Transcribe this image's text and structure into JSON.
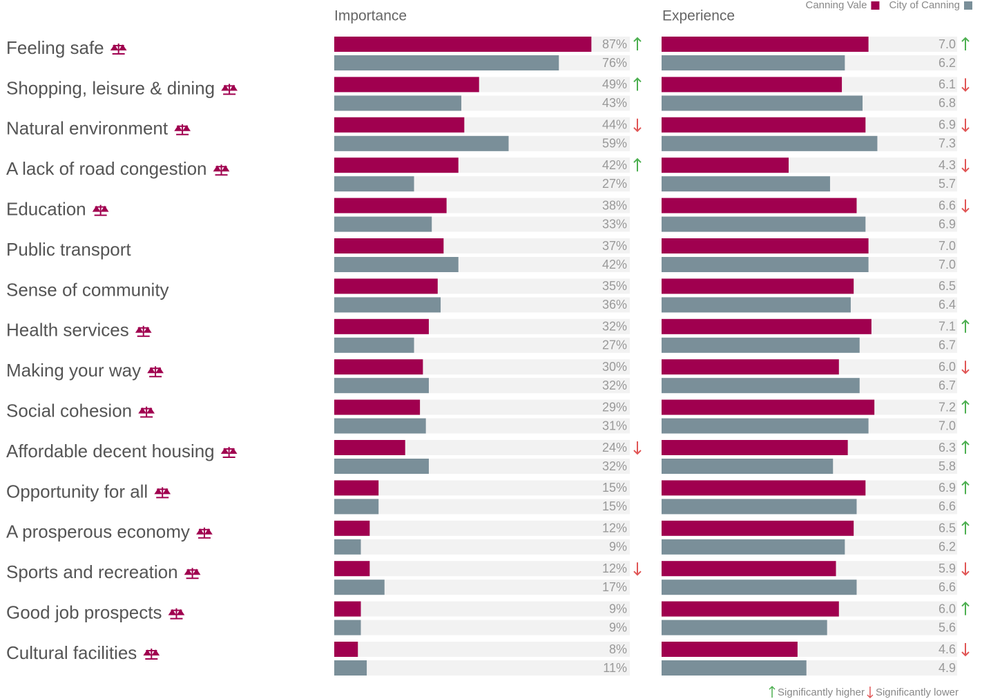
{
  "chart_data": {
    "type": "grouped-hbar",
    "categories": [
      "Feeling safe",
      "Shopping, leisure & dining",
      "Natural environment",
      "A lack of road congestion",
      "Education",
      "Public transport",
      "Sense of community",
      "Health services",
      "Making your way",
      "Social cohesion",
      "Affordable decent housing",
      "Opportunity for all",
      "A prosperous economy",
      "Sports and recreation",
      "Good job prospects",
      "Cultural facilities"
    ],
    "scale_icon": [
      true,
      true,
      true,
      true,
      true,
      false,
      false,
      true,
      true,
      true,
      true,
      true,
      true,
      true,
      true,
      true
    ],
    "legend": {
      "position": "top-right"
    },
    "footnote": {
      "higher": "Significantly higher",
      "lower": "Significantly lower"
    },
    "panels": [
      {
        "title": "Importance",
        "xlim": [
          0,
          100
        ],
        "series": [
          {
            "name": "Canning Vale",
            "color": "#a0004f",
            "values": [
              87,
              49,
              44,
              42,
              38,
              37,
              35,
              32,
              30,
              29,
              24,
              15,
              12,
              12,
              9,
              8
            ],
            "value_labels": [
              "87%",
              "49%",
              "44%",
              "42%",
              "38%",
              "37%",
              "35%",
              "32%",
              "30%",
              "29%",
              "24%",
              "15%",
              "12%",
              "12%",
              "9%",
              "8%"
            ]
          },
          {
            "name": "City of Canning",
            "color": "#7a8f99",
            "values": [
              76,
              43,
              59,
              27,
              33,
              42,
              36,
              27,
              32,
              31,
              32,
              15,
              9,
              17,
              9,
              11
            ],
            "value_labels": [
              "76%",
              "43%",
              "59%",
              "27%",
              "33%",
              "42%",
              "36%",
              "27%",
              "32%",
              "31%",
              "32%",
              "15%",
              "9%",
              "17%",
              "9%",
              "11%"
            ]
          }
        ],
        "significance": [
          "up",
          "up",
          "down",
          "up",
          null,
          null,
          null,
          null,
          null,
          null,
          "down",
          null,
          null,
          "down",
          null,
          null
        ]
      },
      {
        "title": "Experience",
        "xlim": [
          0,
          10
        ],
        "series": [
          {
            "name": "Canning Vale",
            "color": "#a0004f",
            "values": [
              7.0,
              6.1,
              6.9,
              4.3,
              6.6,
              7.0,
              6.5,
              7.1,
              6.0,
              7.2,
              6.3,
              6.9,
              6.5,
              5.9,
              6.0,
              4.6
            ],
            "value_labels": [
              "7.0",
              "6.1",
              "6.9",
              "4.3",
              "6.6",
              "7.0",
              "6.5",
              "7.1",
              "6.0",
              "7.2",
              "6.3",
              "6.9",
              "6.5",
              "5.9",
              "6.0",
              "4.6"
            ]
          },
          {
            "name": "City of Canning",
            "color": "#7a8f99",
            "values": [
              6.2,
              6.8,
              7.3,
              5.7,
              6.9,
              7.0,
              6.4,
              6.7,
              6.7,
              7.0,
              5.8,
              6.6,
              6.2,
              6.6,
              5.6,
              4.9
            ],
            "value_labels": [
              "6.2",
              "6.8",
              "7.3",
              "5.7",
              "6.9",
              "7.0",
              "6.4",
              "6.7",
              "6.7",
              "7.0",
              "5.8",
              "6.6",
              "6.2",
              "6.6",
              "5.6",
              "4.9"
            ]
          }
        ],
        "significance": [
          "up",
          "down",
          "down",
          "down",
          "down",
          null,
          null,
          "up",
          "down",
          "up",
          "up",
          "up",
          "up",
          "down",
          "up",
          "down"
        ]
      }
    ]
  }
}
